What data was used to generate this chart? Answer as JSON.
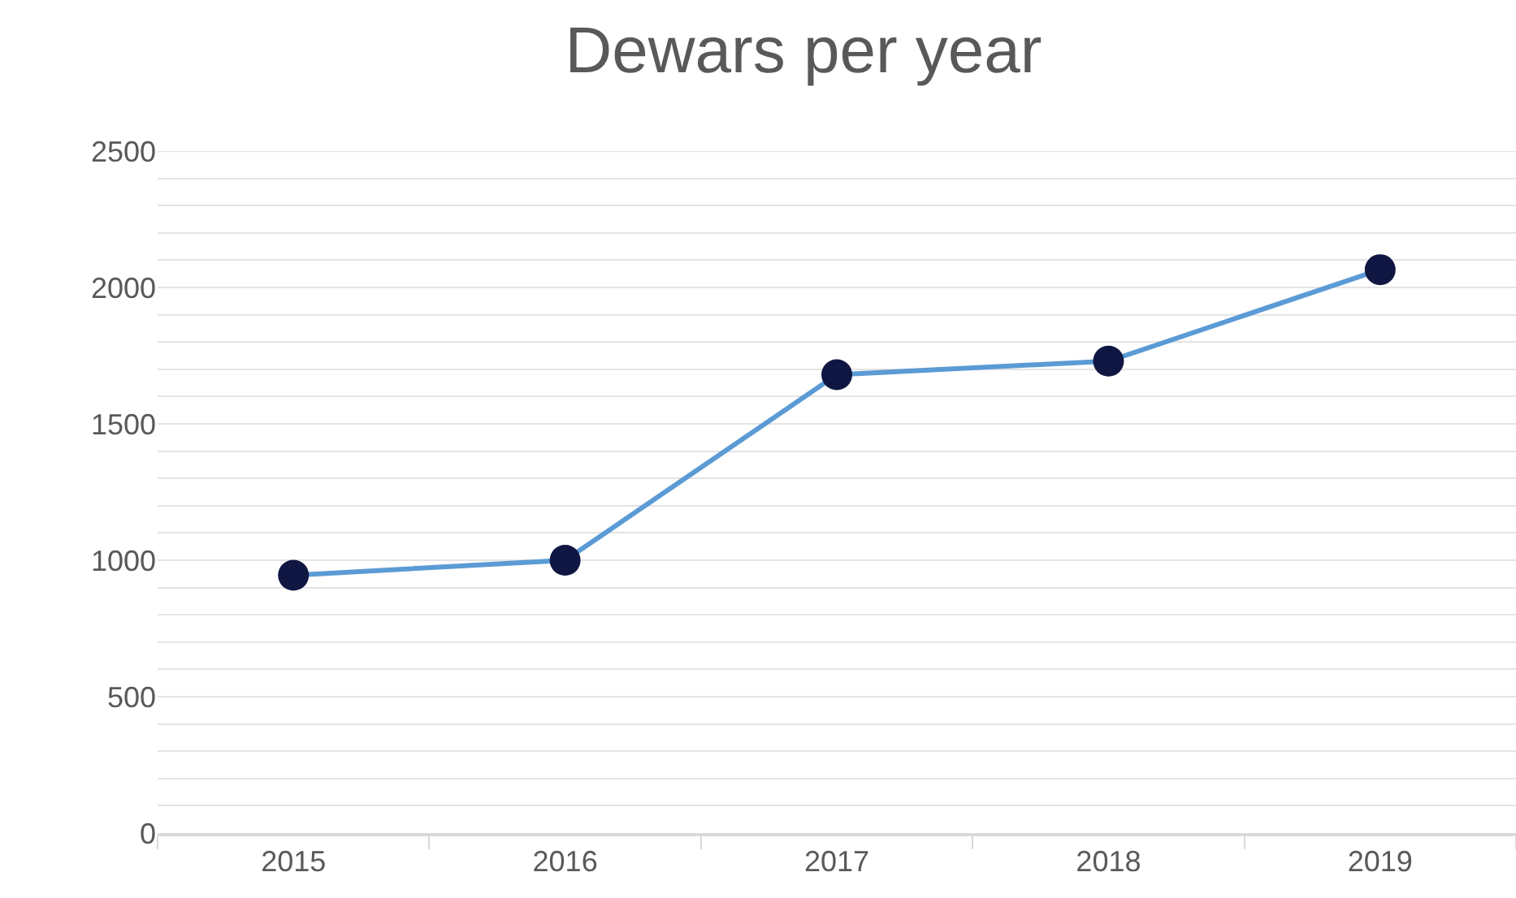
{
  "chart_data": {
    "type": "line",
    "title": "Dewars per year",
    "categories": [
      "2015",
      "2016",
      "2017",
      "2018",
      "2019"
    ],
    "series": [
      {
        "color": "#5b9bd5",
        "colors": [
          "#0f1642",
          "#0f1642",
          "#0f1642",
          "#0f1642",
          "#0f1642"
        ],
        "values": [
          945,
          1000,
          1680,
          1730,
          2065
        ]
      }
    ],
    "ylim": [
      0,
      2500
    ],
    "yticks": [
      0,
      {
        "value": 100,
        "label": null
      },
      {
        "value": 200,
        "label": null
      },
      {
        "value": 300,
        "label": null
      },
      {
        "value": 400,
        "label": null
      },
      500,
      {
        "value": 600,
        "label": null
      },
      {
        "value": 700,
        "label": null
      },
      {
        "value": 800,
        "label": null
      },
      {
        "value": 900,
        "label": null
      },
      1000,
      {
        "value": 1100,
        "label": null
      },
      {
        "value": 1200,
        "label": null
      },
      {
        "value": 1300,
        "label": null
      },
      {
        "value": 1400,
        "label": null
      },
      1500,
      {
        "value": 1600,
        "label": null
      },
      {
        "value": 1700,
        "label": null
      },
      {
        "value": 1800,
        "label": null
      },
      {
        "value": 1900,
        "label": null
      },
      2000,
      {
        "value": 2100,
        "label": null
      },
      {
        "value": 2200,
        "label": null
      },
      {
        "value": 2300,
        "label": null
      },
      {
        "value": 2400,
        "label": null
      },
      2500
    ],
    "grid": "y",
    "marker": "circle",
    "line_style": "solid",
    "legend": false
  }
}
